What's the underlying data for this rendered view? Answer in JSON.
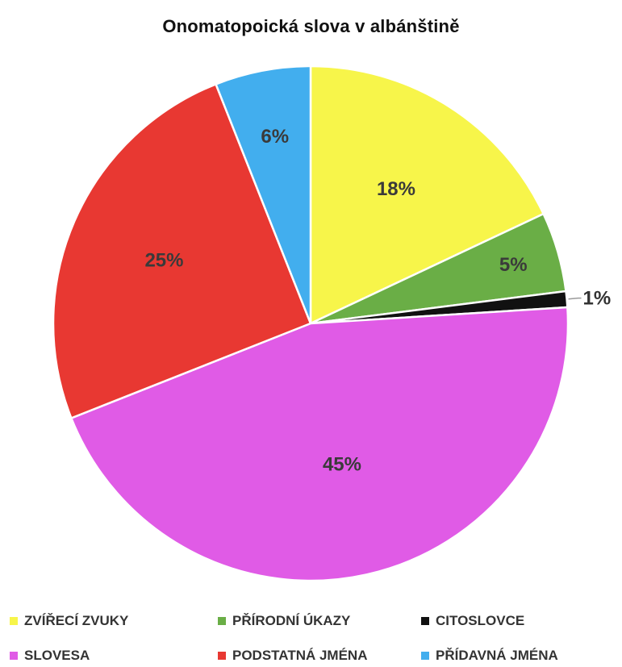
{
  "chart_data": {
    "type": "pie",
    "title": "Onomatopoická slova v albánštině",
    "slices": [
      {
        "name": "ZVÍŘECÍ ZVUKY",
        "value": 18,
        "label": "18%",
        "color": "#F7F54A"
      },
      {
        "name": "PŘÍRODNÍ ÚKAZY",
        "value": 5,
        "label": "5%",
        "color": "#6AAE46"
      },
      {
        "name": "CITOSLOVCE",
        "value": 1,
        "label": "1%",
        "color": "#111111"
      },
      {
        "name": "SLOVESA",
        "value": 45,
        "label": "45%",
        "color": "#E05BE6"
      },
      {
        "name": "PODSTATNÁ JMÉNA",
        "value": 25,
        "label": "25%",
        "color": "#E83832"
      },
      {
        "name": "PŘÍDAVNÁ JMÉNA",
        "value": 6,
        "label": "6%",
        "color": "#42AEEE"
      }
    ],
    "legend": {
      "placement": "bottom"
    }
  }
}
